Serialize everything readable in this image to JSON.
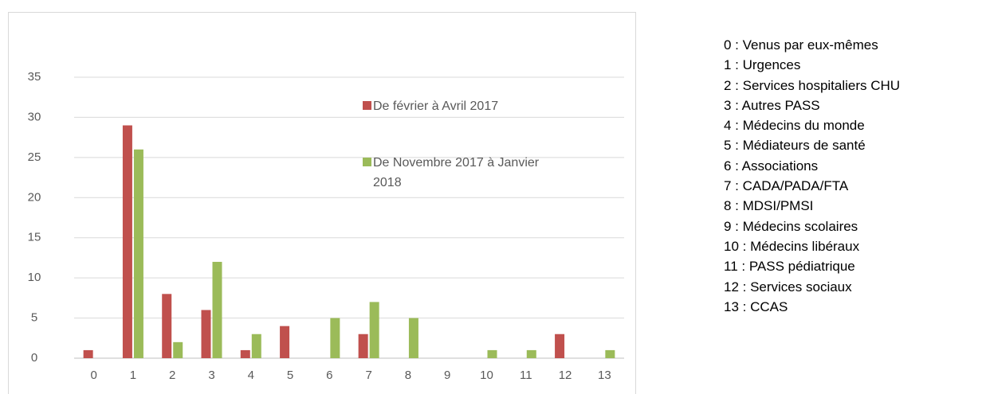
{
  "chart_data": {
    "type": "bar",
    "categories": [
      "0",
      "1",
      "2",
      "3",
      "4",
      "5",
      "6",
      "7",
      "8",
      "9",
      "10",
      "11",
      "12",
      "13"
    ],
    "series": [
      {
        "name": "De février à Avril 2017",
        "color": "#c0504d",
        "values": [
          1,
          29,
          8,
          6,
          1,
          4,
          0,
          3,
          0,
          0,
          0,
          0,
          3,
          0
        ]
      },
      {
        "name": "De Novembre 2017 à Janvier 2018",
        "color": "#9bbb59",
        "values": [
          0,
          26,
          2,
          12,
          3,
          0,
          5,
          7,
          5,
          0,
          1,
          1,
          0,
          1
        ]
      }
    ],
    "ylim": [
      0,
      35
    ],
    "yticks": [
      0,
      5,
      10,
      15,
      20,
      25,
      30,
      35
    ],
    "grid": true,
    "category_key": [
      "0 : Venus par eux-mêmes",
      "1 : Urgences",
      "2 : Services hospitaliers CHU",
      "3 : Autres PASS",
      "4 : Médecins du monde",
      "5 : Médiateurs de santé",
      "6 : Associations",
      "7 : CADA/PADA/FTA",
      "8 : MDSI/PMSI",
      "9 : Médecins scolaires",
      "10 : Médecins libéraux",
      "11 : PASS pédiatrique",
      "12 : Services sociaux",
      "13 : CCAS"
    ]
  }
}
